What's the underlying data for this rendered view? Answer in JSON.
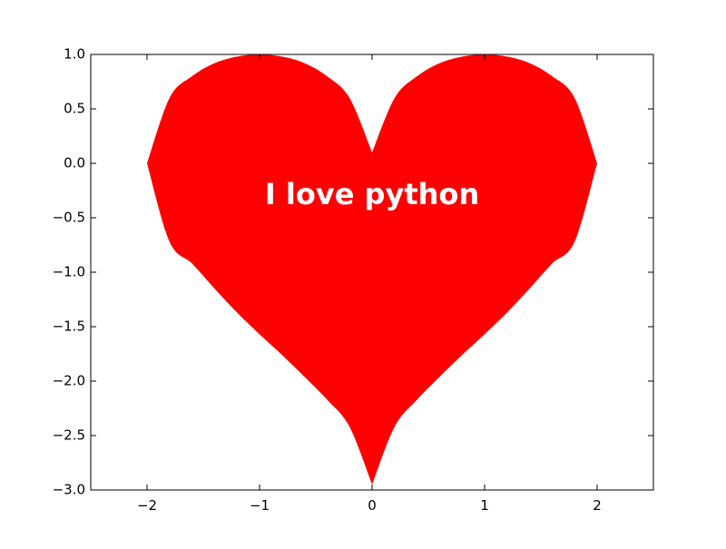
{
  "chart_data": {
    "type": "area",
    "title": "",
    "xlabel": "",
    "ylabel": "",
    "xlim": [
      -2.5,
      2.5
    ],
    "ylim": [
      -3.0,
      1.0
    ],
    "x_ticks": [
      -2,
      -1,
      0,
      1,
      2
    ],
    "x_tick_labels": [
      "−2",
      "−1",
      "0",
      "1",
      "2"
    ],
    "y_ticks": [
      1.0,
      0.5,
      0.0,
      -0.5,
      -1.0,
      -1.5,
      -2.0,
      -2.5,
      -3.0
    ],
    "y_tick_labels": [
      "1.0",
      "0.5",
      "0.0",
      "−0.5",
      "−1.0",
      "−1.5",
      "−2.0",
      "−2.5",
      "−3.0"
    ],
    "grid": false,
    "fill_color": "#ff0000",
    "series": [
      {
        "x": [
          -2.0,
          -1.8,
          -1.6,
          -1.4,
          -1.2,
          -1.0,
          -0.8,
          -0.6,
          -0.4,
          -0.2,
          0.0,
          0.2,
          0.4,
          0.6,
          0.8,
          1.0,
          1.2,
          1.4,
          1.6,
          1.8,
          2.0
        ],
        "upper": [
          0.0,
          0.6,
          0.8,
          0.92,
          0.98,
          1.0,
          0.98,
          0.92,
          0.8,
          0.6,
          0.1,
          0.6,
          0.8,
          0.92,
          0.98,
          1.0,
          0.98,
          0.92,
          0.8,
          0.6,
          0.0
        ],
        "lower": [
          0.0,
          -0.72,
          -0.92,
          -1.15,
          -1.37,
          -1.57,
          -1.76,
          -1.96,
          -2.17,
          -2.42,
          -2.95,
          -2.42,
          -2.17,
          -1.96,
          -1.76,
          -1.57,
          -1.37,
          -1.15,
          -0.92,
          -0.72,
          0.0
        ]
      }
    ],
    "annotation": {
      "text": "I love python",
      "color": "#ffffff",
      "x": 0.0,
      "y": -0.3
    }
  }
}
